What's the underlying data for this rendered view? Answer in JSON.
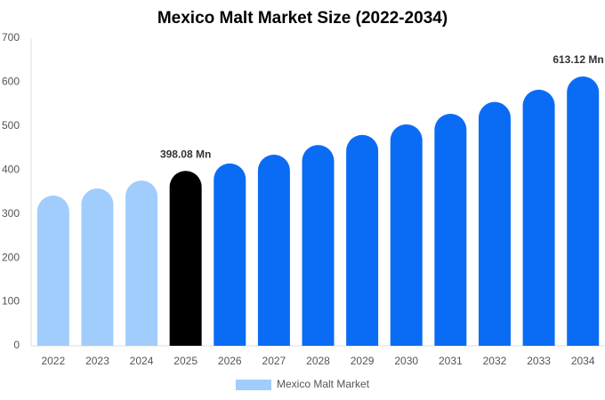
{
  "chart_data": {
    "type": "bar",
    "title": "Mexico Malt Market Size (2022-2034)",
    "categories": [
      "2022",
      "2023",
      "2024",
      "2025",
      "2026",
      "2027",
      "2028",
      "2029",
      "2030",
      "2031",
      "2032",
      "2033",
      "2034"
    ],
    "series": [
      {
        "name": "Mexico Malt Market",
        "color": "#a0cdfc",
        "values": [
          342,
          358,
          376,
          398.08,
          415,
          435,
          457,
          480,
          504,
          528,
          555,
          583,
          613.12
        ],
        "value_labels": [
          null,
          null,
          null,
          "398.08 Mn",
          null,
          null,
          null,
          null,
          null,
          null,
          null,
          null,
          "613.12 Mn"
        ],
        "colors": [
          "#a0cdfc",
          "#a0cdfc",
          "#a0cdfc",
          "#000000",
          "#0a6cf5",
          "#0a6cf5",
          "#0a6cf5",
          "#0a6cf5",
          "#0a6cf5",
          "#0a6cf5",
          "#0a6cf5",
          "#0a6cf5",
          "#0a6cf5"
        ]
      }
    ],
    "ylim": [
      0,
      700
    ],
    "yticks": [
      0,
      100,
      200,
      300,
      400,
      500,
      600,
      700
    ],
    "grid": false
  }
}
